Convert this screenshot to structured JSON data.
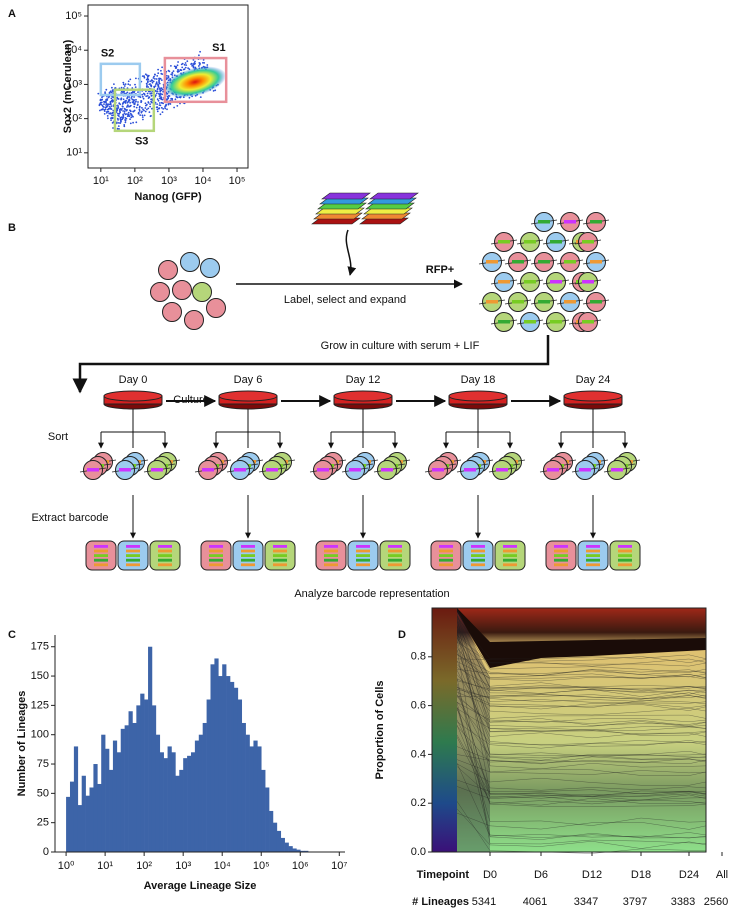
{
  "panel_labels": [
    "A",
    "B",
    "C",
    "D"
  ],
  "chart_data": [
    {
      "type": "density",
      "xlabel": "Nanog (GFP)",
      "ylabel": "Sox2 (mCerulean)",
      "xscale": "log",
      "yscale": "log",
      "xlim": [
        4.2,
        210000
      ],
      "ylim": [
        3.6,
        210000
      ],
      "xticks": [
        {
          "value": 10,
          "label": "10¹"
        },
        {
          "value": 100,
          "label": "10²"
        },
        {
          "value": 1000,
          "label": "10³"
        },
        {
          "value": 10000,
          "label": "10⁴"
        },
        {
          "value": 100000,
          "label": "10⁵"
        }
      ],
      "yticks": [
        {
          "value": 10,
          "label": "10¹"
        },
        {
          "value": 100,
          "label": "10²"
        },
        {
          "value": 1000,
          "label": "10³"
        },
        {
          "value": 10000,
          "label": "10⁴"
        },
        {
          "value": 100000,
          "label": "10⁵"
        }
      ],
      "gates": [
        {
          "name": "S1",
          "x": [
            760,
            48000
          ],
          "y": [
            310,
            5900
          ],
          "color": "#e8909a"
        },
        {
          "name": "S2",
          "x": [
            10,
            140
          ],
          "y": [
            490,
            4000
          ],
          "color": "#9ccbef"
        },
        {
          "name": "S3",
          "x": [
            26,
            360
          ],
          "y": [
            44,
            700
          ],
          "color": "#b5d67a"
        }
      ]
    },
    {
      "type": "histogram",
      "xlabel": "Average Lineage Size",
      "ylabel": "Number of Lineages",
      "xscale": "log",
      "color": "#3d64a8",
      "xlim": [
        0.52,
        14000000
      ],
      "ylim": [
        0,
        185
      ],
      "xticks": [
        {
          "value": 1,
          "label": "10⁰"
        },
        {
          "value": 10,
          "label": "10¹"
        },
        {
          "value": 100,
          "label": "10²"
        },
        {
          "value": 1000,
          "label": "10³"
        },
        {
          "value": 10000,
          "label": "10⁴"
        },
        {
          "value": 100000,
          "label": "10⁵"
        },
        {
          "value": 1000000,
          "label": "10⁶"
        },
        {
          "value": 10000000,
          "label": "10⁷"
        }
      ],
      "yticks": [
        0,
        25,
        50,
        75,
        100,
        125,
        150,
        175
      ],
      "bins": [
        1,
        1.259,
        1.585,
        1.995,
        2.512,
        3.162,
        3.981,
        5.012,
        6.31,
        7.943,
        10,
        12.59,
        15.85,
        19.95,
        25.12,
        31.62,
        39.81,
        50.12,
        63.1,
        79.43,
        100,
        125.9,
        158.5,
        199.5,
        251.2,
        316.2,
        398.1,
        501.2,
        631,
        794.3,
        1000,
        1259,
        1585,
        1995,
        2512,
        3162,
        3981,
        5012,
        6310,
        7943,
        10000,
        12590,
        15850,
        19950,
        25120,
        31620,
        39810,
        50120,
        63100,
        79430,
        100000,
        125900,
        158500,
        199500,
        251200,
        316200,
        398100,
        501200,
        631000,
        794300,
        1000000,
        1259000,
        1585000,
        1995000
      ],
      "values": [
        47,
        60,
        90,
        40,
        65,
        48,
        55,
        75,
        58,
        100,
        88,
        70,
        95,
        85,
        105,
        108,
        120,
        110,
        125,
        135,
        130,
        175,
        125,
        100,
        85,
        80,
        90,
        85,
        65,
        70,
        80,
        82,
        85,
        95,
        100,
        110,
        130,
        160,
        165,
        150,
        160,
        150,
        145,
        140,
        130,
        110,
        100,
        90,
        95,
        90,
        70,
        55,
        35,
        25,
        18,
        12,
        8,
        5,
        3,
        2,
        1,
        1,
        0
      ]
    },
    {
      "type": "area",
      "ylabel": "Proportion of Cells",
      "ylim": [
        0,
        1
      ],
      "yticks": [
        {
          "value": 0,
          "label": "0.0"
        },
        0.2,
        0.4,
        0.6,
        0.8
      ],
      "row_labels": [
        "Timepoint",
        "# Lineages"
      ],
      "categories": [
        "D0",
        "D6",
        "D12",
        "D18",
        "D24",
        "All"
      ],
      "lineages": [
        5341,
        4061,
        3347,
        3797,
        3383,
        2560
      ]
    }
  ],
  "diagram": {
    "rfp": "RFP+",
    "step1": "Label, select and expand",
    "step2": "Grow in culture with serum + LIF",
    "days": [
      "Day 0",
      "Day 6",
      "Day 12",
      "Day 18",
      "Day 24"
    ],
    "culture": "Culture",
    "sort": "Sort",
    "extract": "Extract barcode",
    "analyze": "Analyze barcode representation"
  }
}
